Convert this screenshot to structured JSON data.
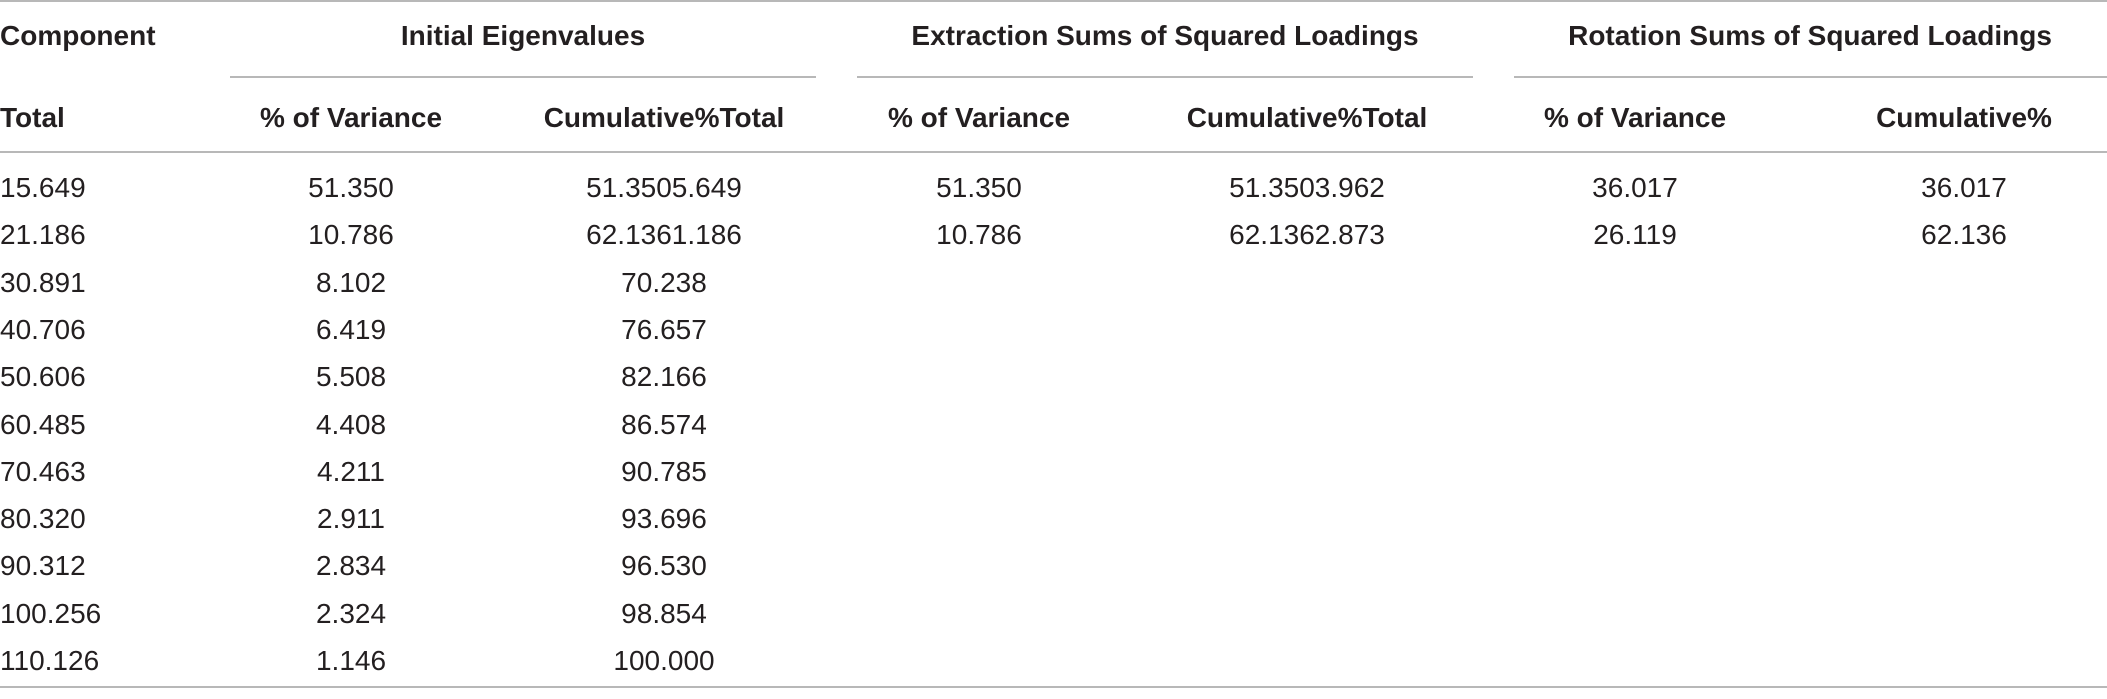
{
  "table": {
    "group_headers": {
      "component": "Component",
      "initial": "Initial Eigenvalues",
      "extraction": "Extraction Sums of Squared Loadings",
      "rotation": "Rotation Sums of Squared Loadings"
    },
    "sub_headers": [
      "Total",
      "% of Variance",
      "Cumulative%Total",
      "% of Variance",
      "Cumulative%Total",
      "% of Variance",
      "Cumulative%"
    ],
    "rows": [
      [
        "15.649",
        "51.350",
        "51.3505.649",
        "51.350",
        "51.3503.962",
        "36.017",
        "36.017"
      ],
      [
        "21.186",
        "10.786",
        "62.1361.186",
        "10.786",
        "62.1362.873",
        "26.119",
        "62.136"
      ],
      [
        "30.891",
        "8.102",
        "70.238",
        "",
        "",
        "",
        ""
      ],
      [
        "40.706",
        "6.419",
        "76.657",
        "",
        "",
        "",
        ""
      ],
      [
        "50.606",
        "5.508",
        "82.166",
        "",
        "",
        "",
        ""
      ],
      [
        "60.485",
        "4.408",
        "86.574",
        "",
        "",
        "",
        ""
      ],
      [
        "70.463",
        "4.211",
        "90.785",
        "",
        "",
        "",
        ""
      ],
      [
        "80.320",
        "2.911",
        "93.696",
        "",
        "",
        "",
        ""
      ],
      [
        "90.312",
        "2.834",
        "96.530",
        "",
        "",
        "",
        ""
      ],
      [
        "100.256",
        "2.324",
        "98.854",
        "",
        "",
        "",
        ""
      ],
      [
        "110.126",
        "1.146",
        "100.000",
        "",
        "",
        "",
        ""
      ]
    ]
  }
}
